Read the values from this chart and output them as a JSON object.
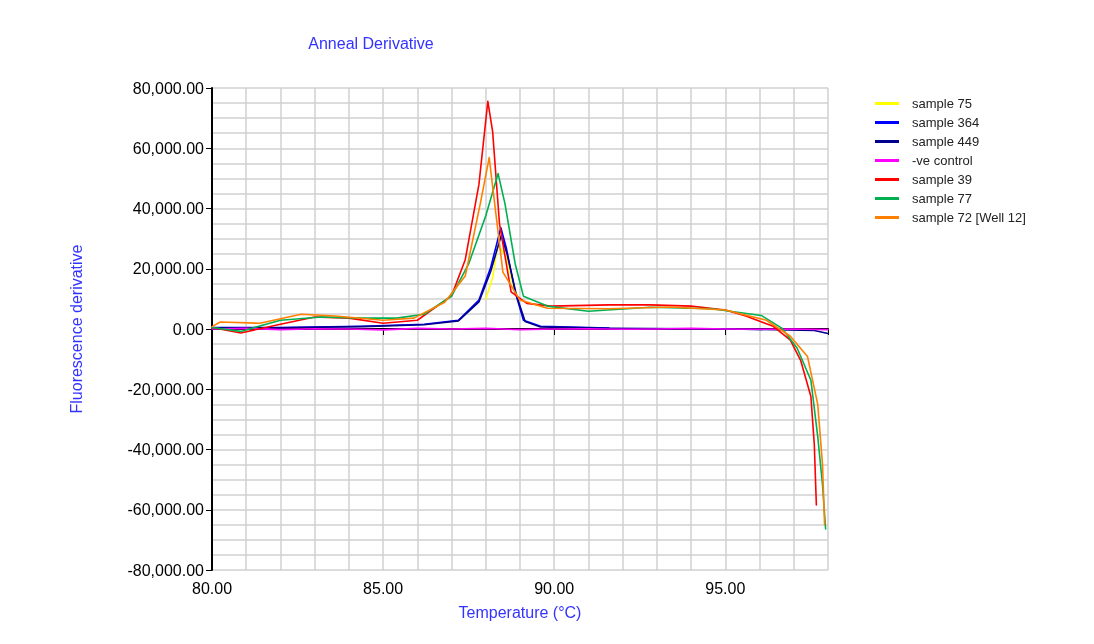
{
  "chart_data": {
    "type": "line",
    "title": "Anneal Derivative",
    "xlabel": "Temperature (°C)",
    "ylabel": "Fluorescence derivative",
    "xlim": [
      80,
      98
    ],
    "xticks": [
      {
        "value": 80,
        "label": "80.00"
      },
      {
        "value": 85,
        "label": "85.00"
      },
      {
        "value": 90,
        "label": "90.00"
      },
      {
        "value": 95,
        "label": "95.00"
      }
    ],
    "ylim": [
      -80000,
      80000
    ],
    "yticks": [
      {
        "value": -80000,
        "label": "-80,000.00"
      },
      {
        "value": -60000,
        "label": "-60,000.00"
      },
      {
        "value": -40000,
        "label": "-40,000.00"
      },
      {
        "value": -20000,
        "label": "-20,000.00"
      },
      {
        "value": 0,
        "label": "0.00"
      },
      {
        "value": 20000,
        "label": "20,000.00"
      },
      {
        "value": 40000,
        "label": "40,000.00"
      },
      {
        "value": 60000,
        "label": "60,000.00"
      },
      {
        "value": 80000,
        "label": "80,000.00"
      }
    ],
    "grid": true,
    "legend": "top right",
    "marker": "none",
    "line_style": "solid",
    "series": [
      {
        "name": "sample 75",
        "color": "#ffff00",
        "x": [
          88.0,
          88.2,
          88.35,
          88.6,
          88.86
        ],
        "values": [
          10000,
          17000,
          28000,
          24000,
          11500
        ]
      },
      {
        "name": "sample 364",
        "color": "#0000ff",
        "x": [
          80,
          82,
          84.4,
          86.2,
          87.2,
          87.8,
          88.14,
          88.44,
          88.6,
          88.86,
          89.1,
          89.6,
          91.6
        ],
        "values": [
          500,
          500,
          900,
          1600,
          2900,
          9600,
          20300,
          33600,
          26900,
          12300,
          2900,
          900,
          300
        ]
      },
      {
        "name": "sample 449",
        "color": "#00008b",
        "x": [
          80,
          82,
          84.4,
          86.2,
          87.2,
          87.8,
          88.14,
          88.45,
          88.62,
          88.9,
          89.15,
          89.6,
          91.6,
          95.2,
          97.6,
          98
        ],
        "values": [
          300,
          400,
          800,
          1400,
          2700,
          9000,
          19000,
          31000,
          25000,
          11000,
          2500,
          700,
          200,
          0,
          -500,
          -1500
        ]
      },
      {
        "name": "-ve control",
        "color": "#ff00ff",
        "x": [
          80,
          81,
          82,
          83,
          84,
          85,
          86,
          87,
          88,
          89,
          90,
          91,
          92,
          93,
          94,
          95,
          96,
          97,
          98
        ],
        "values": [
          0,
          200,
          -200,
          100,
          0,
          -300,
          200,
          0,
          200,
          -200,
          0,
          100,
          -100,
          0,
          200,
          0,
          -100,
          0,
          -200
        ]
      },
      {
        "name": "sample 39",
        "color": "#ff0000",
        "x": [
          80,
          80.84,
          82,
          83,
          84,
          85,
          86,
          87,
          87.4,
          87.8,
          88.06,
          88.2,
          88.4,
          88.74,
          89.2,
          89.9,
          91.6,
          92.8,
          94,
          95,
          95.6,
          96.4,
          96.9,
          97.2,
          97.5,
          97.6,
          97.66
        ],
        "values": [
          500,
          -1300,
          1600,
          4000,
          3600,
          1900,
          2900,
          11000,
          23000,
          48000,
          75600,
          65600,
          35000,
          12300,
          8500,
          7600,
          8000,
          8000,
          7600,
          6300,
          4300,
          900,
          -3700,
          -10400,
          -22400,
          -38400,
          -58400
        ]
      },
      {
        "name": "sample 77",
        "color": "#00b050",
        "x": [
          80,
          80.84,
          82,
          83.2,
          84.4,
          85.4,
          86.2,
          87,
          87.5,
          88,
          88.36,
          88.56,
          88.86,
          89.1,
          89.8,
          91,
          92.8,
          94.6,
          96.05,
          96.65,
          97.1,
          97.5,
          97.7,
          97.84,
          97.93
        ],
        "values": [
          500,
          -800,
          2900,
          4000,
          3600,
          3600,
          4900,
          10900,
          21600,
          37600,
          51600,
          41600,
          21600,
          10900,
          7600,
          5900,
          7200,
          6700,
          4500,
          300,
          -6400,
          -17000,
          -35700,
          -51700,
          -66400
        ]
      },
      {
        "name": "sample 72 [Well 12]",
        "color": "#ff8000",
        "x": [
          80,
          80.24,
          81.4,
          82.6,
          83.6,
          85,
          85.9,
          86.8,
          87.4,
          87.84,
          88.1,
          88.26,
          88.5,
          89,
          89.8,
          91.6,
          93.4,
          95,
          96.2,
          96.9,
          97.4,
          97.7,
          97.84,
          97.9
        ],
        "values": [
          800,
          2300,
          1900,
          4900,
          4300,
          2900,
          3600,
          8900,
          17600,
          41600,
          56900,
          41600,
          18900,
          9600,
          6900,
          6700,
          7300,
          6300,
          2900,
          -2400,
          -9100,
          -25000,
          -45000,
          -65000
        ]
      }
    ]
  }
}
